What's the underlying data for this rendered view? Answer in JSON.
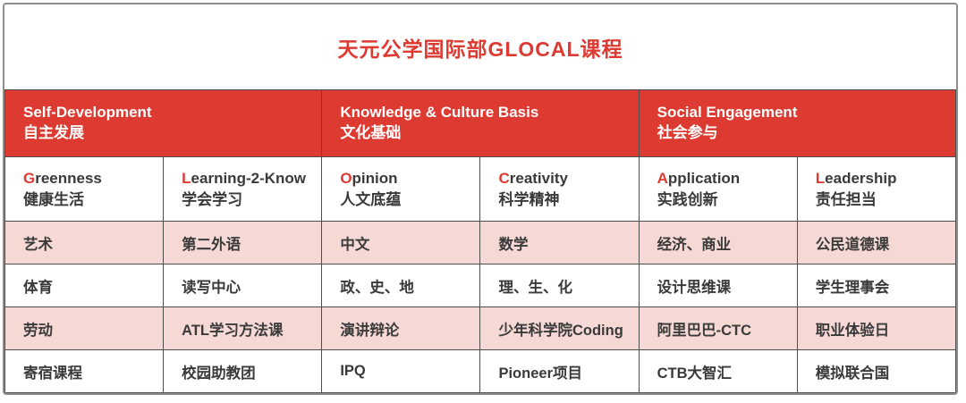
{
  "title": "天元公学国际部GLOCAL课程",
  "colors": {
    "accent_red": "#dd3a31",
    "row_pink": "#f6d9d5",
    "grid_line": "#4d4d4d",
    "text_dark": "#3a3a3a",
    "header_text": "#ffffff",
    "outer_border": "#8e8e8e"
  },
  "sections": [
    {
      "en": "Self-Development",
      "zh": "自主发展"
    },
    {
      "en": "Knowledge & Culture Basis",
      "zh": "文化基础"
    },
    {
      "en": "Social Engagement",
      "zh": "社会参与"
    }
  ],
  "subheaders": [
    {
      "initial": "G",
      "rest": "reenness",
      "zh": "健康生活"
    },
    {
      "initial": "L",
      "rest": "earning-2-Know",
      "zh": "学会学习"
    },
    {
      "initial": "O",
      "rest": "pinion",
      "zh": "人文底蕴"
    },
    {
      "initial": "C",
      "rest": "reativity",
      "zh": "科学精神"
    },
    {
      "initial": "A",
      "rest": "pplication",
      "zh": "实践创新"
    },
    {
      "initial": "L",
      "rest": "eadership",
      "zh": "责任担当"
    }
  ],
  "rows": [
    {
      "cells": [
        "艺术",
        "第二外语",
        "中文",
        "数学",
        "经济、商业",
        "公民道德课"
      ]
    },
    {
      "cells": [
        "体育",
        "读写中心",
        "政、史、地",
        "理、生、化",
        "设计思维课",
        "学生理事会"
      ]
    },
    {
      "cells": [
        "劳动",
        "ATL学习方法课",
        "演讲辩论",
        "少年科学院Coding",
        "阿里巴巴-CTC",
        "职业体验日"
      ]
    },
    {
      "cells": [
        "寄宿课程",
        "校园助教团",
        "IPQ",
        "Pioneer项目",
        "CTB大智汇",
        "模拟联合国"
      ]
    }
  ]
}
